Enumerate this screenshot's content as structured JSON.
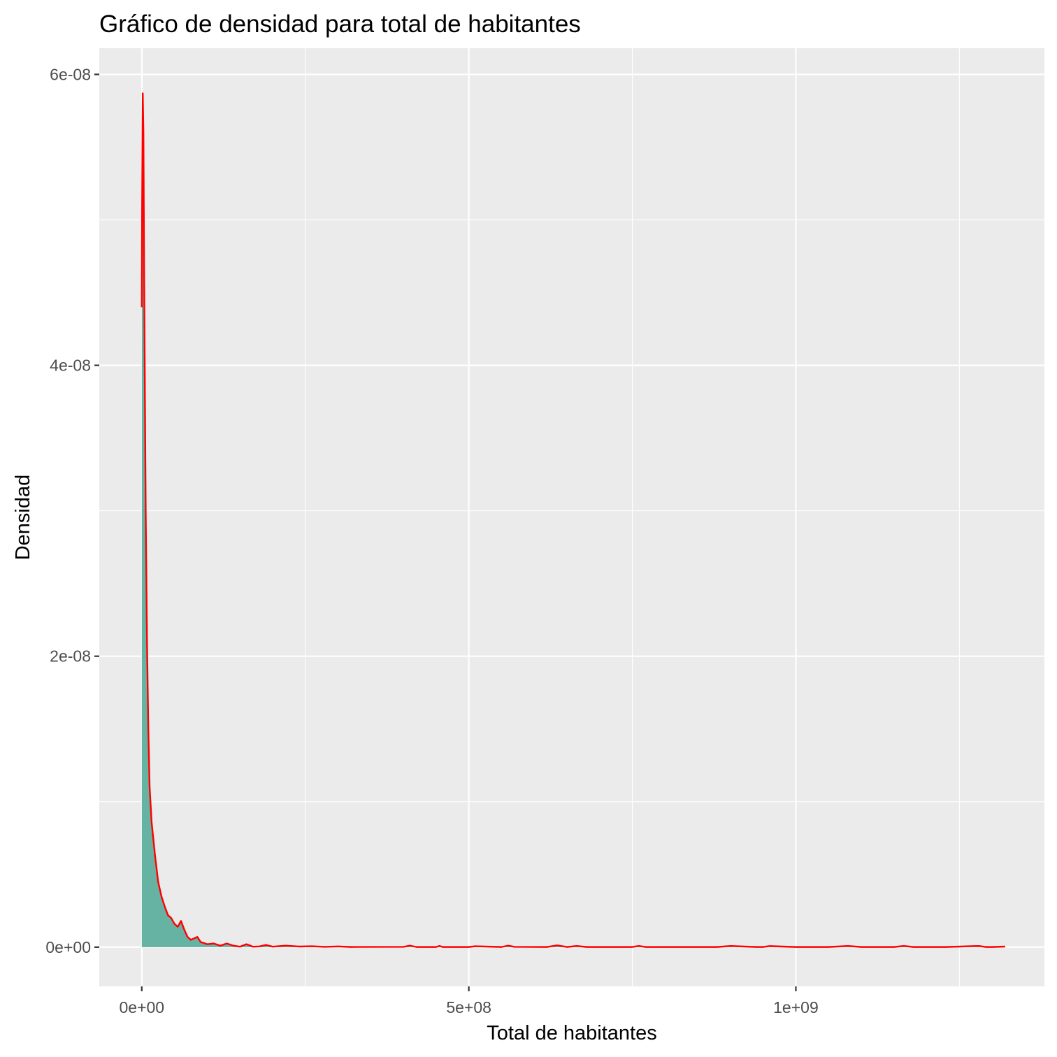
{
  "chart_data": {
    "type": "area",
    "title": "Gráfico de densidad para total de habitantes",
    "xlabel": "Total de habitantes",
    "ylabel": "Densidad",
    "xlim": [
      -65000000,
      1380000000
    ],
    "ylim": [
      -2.7e-09,
      6.18e-08
    ],
    "x_ticks": [
      {
        "value": 0,
        "label": "0e+00"
      },
      {
        "value": 500000000,
        "label": "5e+08"
      },
      {
        "value": 1000000000,
        "label": "1e+09"
      }
    ],
    "y_ticks": [
      {
        "value": 0,
        "label": "0e+00"
      },
      {
        "value": 2e-08,
        "label": "2e-08"
      },
      {
        "value": 4e-08,
        "label": "4e-08"
      },
      {
        "value": 6e-08,
        "label": "6e-08"
      }
    ],
    "x_minor": [
      250000000,
      750000000,
      1250000000
    ],
    "y_minor": [
      1e-08,
      3e-08,
      5e-08
    ],
    "grid": true,
    "fill_color": "#66B2A3",
    "line_color": "#FF0000",
    "panel_color": "#EBEBEB",
    "grid_color": "#FFFFFF",
    "series": [
      {
        "x": [
          0,
          500000,
          1500000,
          2500000,
          3500000,
          4500000,
          6000000,
          8000000,
          10000000,
          12000000,
          15000000,
          20000000,
          25000000,
          30000000,
          35000000,
          40000000,
          45000000,
          50000000,
          55000000,
          60000000,
          65000000,
          70000000,
          75000000,
          80000000,
          85000000,
          90000000,
          100000000,
          110000000,
          120000000,
          130000000,
          140000000,
          150000000,
          160000000,
          170000000,
          180000000,
          190000000,
          200000000,
          220000000,
          240000000,
          260000000,
          280000000,
          300000000,
          320000000,
          400000000,
          410000000,
          420000000,
          450000000,
          455000000,
          460000000,
          480000000,
          500000000,
          510000000,
          550000000,
          560000000,
          570000000,
          620000000,
          635000000,
          650000000,
          665000000,
          680000000,
          700000000,
          750000000,
          760000000,
          770000000,
          800000000,
          865000000,
          880000000,
          900000000,
          940000000,
          950000000,
          960000000,
          1000000000,
          1050000000,
          1080000000,
          1100000000,
          1150000000,
          1165000000,
          1180000000,
          1230000000,
          1280000000,
          1290000000,
          1300000000,
          1320000000
        ],
        "y": [
          4.4e-08,
          5.1e-08,
          5.87e-08,
          5.6e-08,
          4.7e-08,
          4e-08,
          3e-08,
          2.1e-08,
          1.5e-08,
          1.1e-08,
          8.6e-09,
          6.4e-09,
          4.5e-09,
          3.5e-09,
          2.8e-09,
          2.2e-09,
          2e-09,
          1.6e-09,
          1.4e-09,
          1.8e-09,
          1.2e-09,
          7e-10,
          5e-10,
          6e-10,
          7e-10,
          3.5e-10,
          2e-10,
          2.5e-10,
          1e-10,
          2.5e-10,
          1e-10,
          3e-11,
          2e-10,
          3e-11,
          5e-11,
          1.5e-10,
          3e-11,
          1e-10,
          4e-11,
          6e-11,
          2e-11,
          5e-11,
          1e-11,
          2e-11,
          1e-10,
          1e-11,
          1e-11,
          8e-11,
          1e-11,
          1e-11,
          1e-11,
          6e-11,
          1e-11,
          1e-10,
          2e-11,
          1e-11,
          1.2e-10,
          1e-11,
          8e-11,
          1e-11,
          1e-11,
          1e-11,
          8e-11,
          1e-11,
          1e-11,
          1e-11,
          1e-11,
          8e-11,
          1e-11,
          1e-11,
          7e-11,
          1e-11,
          1e-11,
          8e-11,
          1e-11,
          1e-11,
          8e-11,
          1e-11,
          1e-11,
          8e-11,
          1e-11,
          1e-11,
          4e-11
        ]
      }
    ]
  }
}
